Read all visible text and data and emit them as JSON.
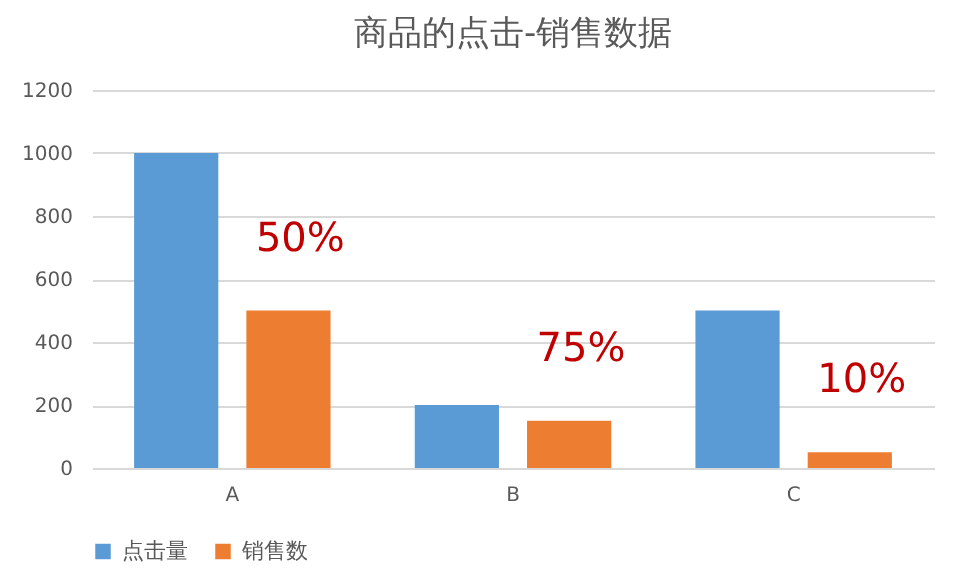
{
  "chart_data": {
    "type": "bar",
    "title": "商品的点击-销售数据",
    "categories": [
      "A",
      "B",
      "C"
    ],
    "series": [
      {
        "name": "点击量",
        "color": "#5b9bd5",
        "values": [
          1000,
          200,
          500
        ]
      },
      {
        "name": "销售数",
        "color": "#ed7d31",
        "values": [
          500,
          150,
          50
        ]
      }
    ],
    "ylim": [
      0,
      1200
    ],
    "yticks": [
      0,
      200,
      400,
      600,
      800,
      1000,
      1200
    ],
    "grid": "y",
    "legend": "bottom",
    "annotations": [
      "50%",
      "75%",
      "10%"
    ]
  }
}
